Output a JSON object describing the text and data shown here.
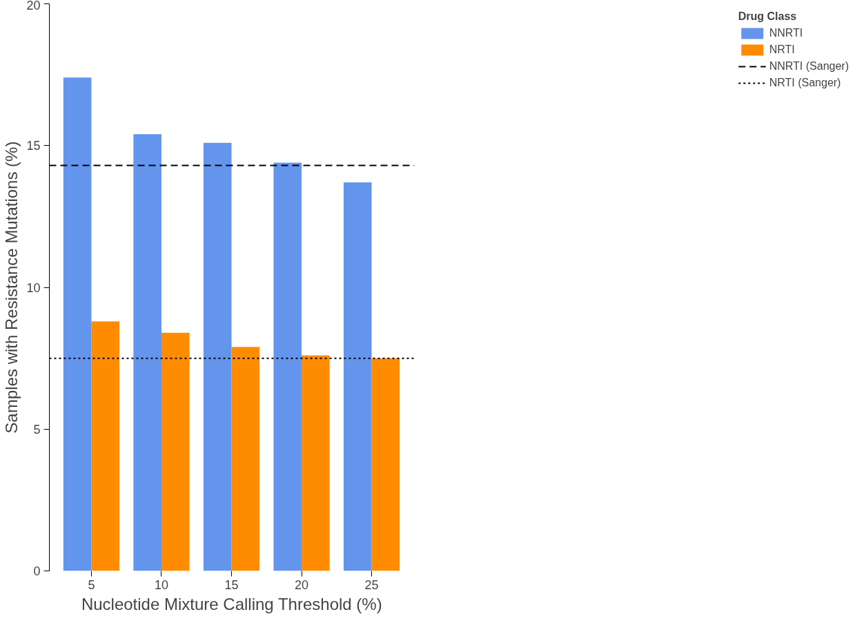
{
  "chart_data": {
    "type": "bar",
    "xlabel": "Nucleotide Mixture Calling Threshold (%)",
    "ylabel": "Samples with Resistance Mutations (%)",
    "legend_title": "Drug Class",
    "categories": [
      "5",
      "10",
      "15",
      "20",
      "25"
    ],
    "series": [
      {
        "name": "NNRTI",
        "color": "#6495ed",
        "values": [
          17.4,
          15.4,
          15.1,
          14.4,
          13.7
        ]
      },
      {
        "name": "NRTI",
        "color": "#ff8c00",
        "values": [
          8.8,
          8.4,
          7.9,
          7.6,
          7.5
        ]
      }
    ],
    "ref_lines": [
      {
        "axis": "y",
        "value": 14.3,
        "label": "NNRTI (Sanger)",
        "color": "#000000",
        "line_style": "dashed"
      },
      {
        "axis": "y",
        "value": 7.5,
        "label": "NRTI (Sanger)",
        "color": "#000000",
        "line_style": "dotted"
      }
    ],
    "ylim": [
      0,
      20
    ],
    "yticks": [
      0,
      5,
      10,
      15,
      20
    ],
    "grid": false,
    "legend": "right"
  }
}
